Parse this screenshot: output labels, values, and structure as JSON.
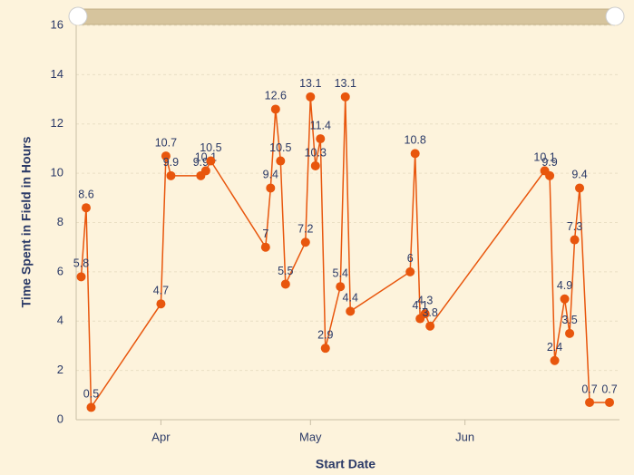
{
  "chart_data": {
    "type": "line",
    "x_label": "Start Date",
    "y_label": "Time Spent in Field in Hours",
    "x": [
      15,
      16,
      17,
      31,
      32,
      33,
      39,
      40,
      41,
      52,
      53,
      54,
      55,
      56,
      60,
      61,
      62,
      63,
      64,
      67,
      68,
      69,
      81,
      82,
      83,
      84,
      85,
      108,
      109,
      110,
      112,
      113,
      114,
      115,
      117,
      121
    ],
    "series": [
      {
        "color": "#e8560d",
        "values": [
          5.8,
          8.6,
          0.5,
          4.7,
          10.7,
          9.9,
          9.9,
          10.1,
          10.5,
          7,
          9.4,
          12.6,
          10.5,
          5.5,
          7.2,
          13.1,
          10.3,
          11.4,
          2.9,
          5.4,
          13.1,
          4.4,
          6,
          10.8,
          4.1,
          4.3,
          3.8,
          10.1,
          9.9,
          2.4,
          4.9,
          3.5,
          7.3,
          9.4,
          0.7,
          0.7
        ]
      }
    ],
    "xlim": [
      14,
      123
    ],
    "xticks": [
      {
        "value": 31,
        "label": "Apr"
      },
      {
        "value": 61,
        "label": "May"
      },
      {
        "value": 92,
        "label": "Jun"
      }
    ],
    "ylim": [
      0,
      16
    ],
    "yticks": [
      0,
      2,
      4,
      6,
      8,
      10,
      12,
      14,
      16
    ],
    "grid": true
  }
}
